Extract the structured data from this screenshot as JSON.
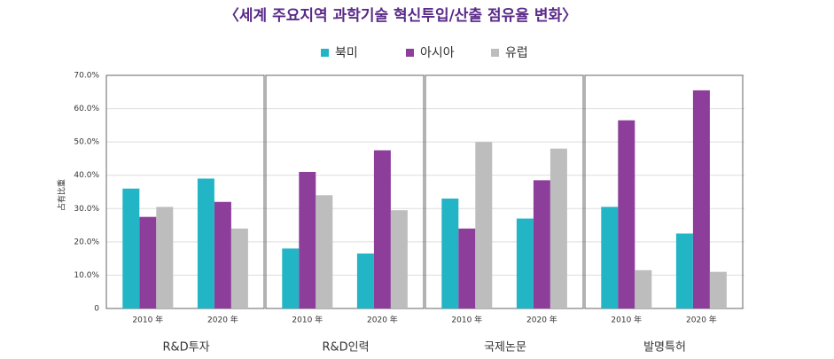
{
  "chart_data": {
    "type": "bar",
    "title": "〈세계 주요지역 과학기술 혁신투입/산출 점유율 변화〉",
    "ylabel": "占有比重",
    "series": [
      {
        "name": "북미",
        "color": "#22b5c6"
      },
      {
        "name": "아시아",
        "color": "#8d3e9b"
      },
      {
        "name": "유럽",
        "color": "#bdbdbd"
      }
    ],
    "ylim": [
      0,
      70
    ],
    "yticks": [
      0,
      {
        "value": 10,
        "label": "10.0%"
      },
      {
        "value": 20,
        "label": "20.0%"
      },
      {
        "value": 30,
        "label": "30.0%"
      },
      {
        "value": 40,
        "label": "40.0%"
      },
      {
        "value": 50,
        "label": "50.0%"
      },
      {
        "value": 60,
        "label": "60.0%"
      },
      {
        "value": 70,
        "label": "70.0%"
      }
    ],
    "grid": true,
    "panels": [
      {
        "title": "R&D투자",
        "categories": [
          "2010 年",
          "2020 年"
        ],
        "values": [
          [
            36,
            39
          ],
          [
            27.5,
            32
          ],
          [
            30.5,
            24
          ]
        ]
      },
      {
        "title": "R&D인력",
        "categories": [
          "2010 年",
          "2020 年"
        ],
        "values": [
          [
            18,
            16.5
          ],
          [
            41,
            47.5
          ],
          [
            34,
            29.5
          ]
        ]
      },
      {
        "title": "국제논문",
        "categories": [
          "2010 年",
          "2020 年"
        ],
        "values": [
          [
            33,
            27
          ],
          [
            24,
            38.5
          ],
          [
            50,
            48
          ]
        ]
      },
      {
        "title": "발명특허",
        "categories": [
          "2010 年",
          "2020 年"
        ],
        "values": [
          [
            30.5,
            22.5
          ],
          [
            56.5,
            65.5
          ],
          [
            11.5,
            11
          ]
        ]
      }
    ]
  }
}
